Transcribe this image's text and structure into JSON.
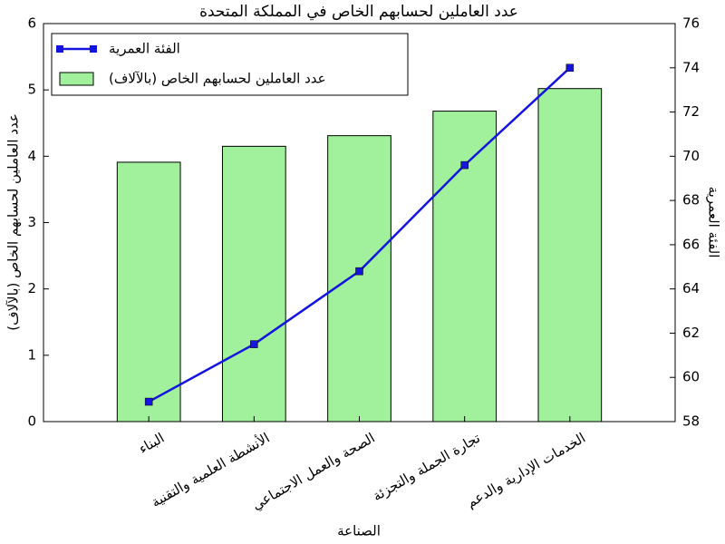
{
  "chart_data": {
    "type": "bar",
    "title": "عدد العاملين لحسابهم الخاص في المملكة المتحدة",
    "xlabel": "الصناعة",
    "ylabel": "عدد العاملين لحسابهم الخاص (بالآلاف)",
    "y2label": "الفئة العمرية",
    "categories": [
      "البناء",
      "الأنشطة العلمية والتقنية",
      "الصحة والعمل الاجتماعي",
      "تجارة الجملة والتجزئة",
      "الخدمات الإدارية والدعم"
    ],
    "series": [
      {
        "name": "عدد العاملين لحسابهم الخاص (بالآلاف)",
        "type": "bar",
        "color": "#a0f09c",
        "values": [
          3.91,
          4.15,
          4.31,
          4.68,
          5.02
        ]
      },
      {
        "name": "الفئة العمرية",
        "type": "line",
        "axis": "y2",
        "color": "#1414e0",
        "values": [
          58.9,
          61.5,
          64.8,
          69.6,
          74.0
        ]
      }
    ],
    "ylim": [
      0,
      6
    ],
    "yticks": [
      0,
      1,
      2,
      3,
      4,
      5,
      6
    ],
    "y2lim": [
      58,
      76
    ],
    "y2ticks": [
      58,
      60,
      62,
      64,
      66,
      68,
      70,
      72,
      74,
      76
    ],
    "legend": "upper left"
  }
}
